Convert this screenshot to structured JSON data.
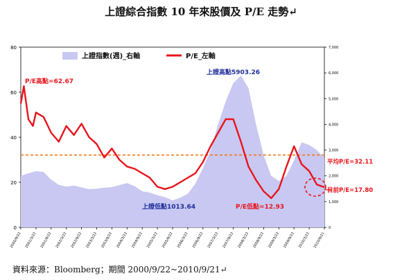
{
  "title": "上證綜合指數 10 年來股價及 P/E 走勢↵",
  "source": "資料來源：Bloomberg；期間 2000/9/22~2010/9/21↵",
  "chart_data": {
    "type": "area+line",
    "legend": [
      "上證指數(週)_右軸",
      "P/E_左軸"
    ],
    "colors": {
      "index": "#c8c8f2",
      "pe": "#e8141c",
      "avg": "#f07818",
      "annotation_blue": "#1f2d9b",
      "annotation_red": "#e8141c"
    },
    "y_left": {
      "min": 0,
      "max": 80,
      "ticks": [
        "0",
        "20",
        "40",
        "60",
        "80"
      ]
    },
    "y_right": {
      "min": 0,
      "max": 7000,
      "ticks": [
        "0",
        "1,000",
        "2,000",
        "3,000",
        "4,000",
        "5,000",
        "6,000",
        "7,000"
      ]
    },
    "x_ticks": [
      "2000/9/22",
      "2001/3/22",
      "2001/9/22",
      "2002/3/22",
      "2002/9/22",
      "2003/3/22",
      "2003/9/22",
      "2004/3/22",
      "2004/9/22",
      "2005/3/22",
      "2005/9/22",
      "2006/3/22",
      "2006/9/22",
      "2007/3/22",
      "2007/9/22",
      "2008/3/22",
      "2008/9/22",
      "2009/3/22",
      "2009/9/22",
      "2010/3/22",
      "2010/9/21"
    ],
    "x_range": [
      0,
      10
    ],
    "average_pe": 32.11,
    "annotations": {
      "pe_high": "P/E高點=62.67",
      "index_high": "上證高點5903.26",
      "pe_avg": "平均P/E=32.11",
      "pe_current": "目前P/E=17.80",
      "index_low": "上證低點1013.64",
      "pe_low": "P/E低點=12.93"
    },
    "series": [
      {
        "name": "上證指數(週)_右軸",
        "axis": "right",
        "x": [
          0,
          0.25,
          0.5,
          0.75,
          1,
          1.25,
          1.5,
          1.75,
          2,
          2.25,
          2.5,
          2.75,
          3,
          3.25,
          3.5,
          3.75,
          4,
          4.25,
          4.5,
          4.75,
          5,
          5.25,
          5.5,
          5.75,
          6,
          6.25,
          6.5,
          6.75,
          7,
          7.25,
          7.5,
          7.75,
          8,
          8.25,
          8.5,
          8.75,
          9,
          9.25,
          9.5,
          9.75,
          10
        ],
        "values": [
          2000,
          2100,
          2180,
          2150,
          1850,
          1650,
          1580,
          1620,
          1550,
          1480,
          1500,
          1540,
          1560,
          1640,
          1720,
          1600,
          1400,
          1350,
          1250,
          1170,
          1050,
          1150,
          1300,
          1700,
          2300,
          3000,
          4000,
          4900,
          5600,
          5900,
          5400,
          4000,
          2800,
          2000,
          1800,
          2000,
          2600,
          3300,
          3200,
          3000,
          2700
        ]
      },
      {
        "name": "P/E_左軸",
        "axis": "left",
        "x": [
          0,
          0.1,
          0.25,
          0.4,
          0.5,
          0.75,
          1,
          1.25,
          1.5,
          1.75,
          2,
          2.25,
          2.5,
          2.75,
          3,
          3.25,
          3.5,
          3.75,
          4,
          4.25,
          4.5,
          4.75,
          5,
          5.25,
          5.5,
          5.75,
          6,
          6.25,
          6.5,
          6.75,
          7,
          7.25,
          7.5,
          7.75,
          8,
          8.25,
          8.5,
          8.75,
          9,
          9.25,
          9.5,
          9.75,
          10
        ],
        "values": [
          55,
          62.67,
          48,
          45,
          51,
          49,
          42,
          38,
          45,
          41,
          46,
          40,
          37,
          31,
          35,
          30,
          27,
          26,
          24,
          22,
          18,
          17,
          18,
          20,
          22,
          24,
          29,
          36,
          42,
          48,
          48,
          38,
          27,
          21,
          16,
          12.93,
          17,
          27,
          36,
          28,
          25,
          19,
          17.8
        ]
      }
    ]
  }
}
